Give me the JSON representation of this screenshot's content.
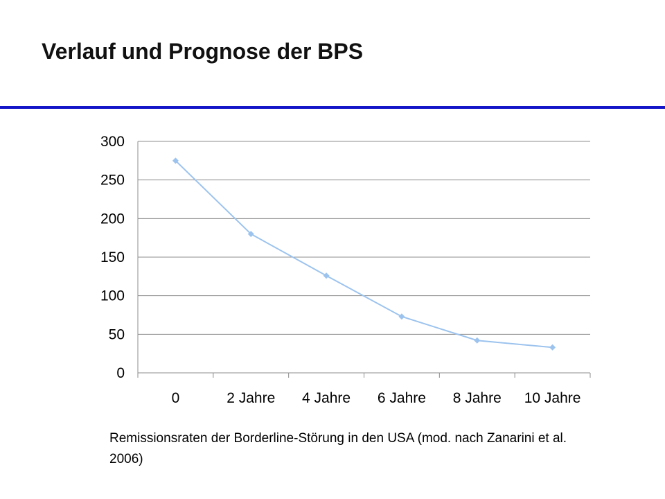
{
  "slide": {
    "title": "Verlauf und Prognose der BPS",
    "rule_color": "#1414c8",
    "caption": "Remissionsraten der Borderline-Störung in den USA (mod. nach Zanarini et al. 2006)"
  },
  "chart_data": {
    "type": "line",
    "title": "",
    "xlabel": "",
    "ylabel": "",
    "categories": [
      "0",
      "2 Jahre",
      "4 Jahre",
      "6 Jahre",
      "8 Jahre",
      "10 Jahre"
    ],
    "series": [
      {
        "values": [
          275,
          180,
          126,
          73,
          42,
          33
        ],
        "color": "#9cc3ee",
        "marker": "diamond"
      }
    ],
    "ylim": [
      0,
      300
    ],
    "yticks": [
      0,
      50,
      100,
      150,
      200,
      250,
      300
    ],
    "grid": true,
    "legend": "none"
  }
}
